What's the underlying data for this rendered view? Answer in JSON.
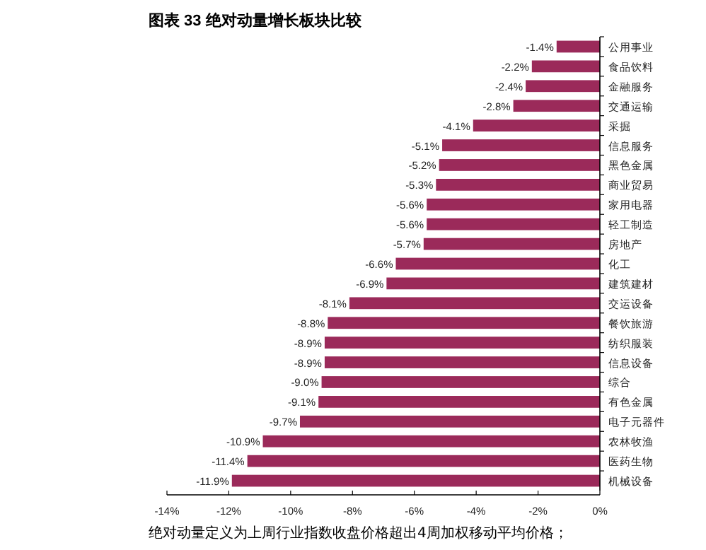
{
  "chart_data": {
    "type": "bar",
    "orientation": "horizontal",
    "title": "图表 33 绝对动量增长板块比较",
    "categories": [
      "公用事业",
      "食品饮料",
      "金融服务",
      "交通运输",
      "采掘",
      "信息服务",
      "黑色金属",
      "商业贸易",
      "家用电器",
      "轻工制造",
      "房地产",
      "化工",
      "建筑建材",
      "交运设备",
      "餐饮旅游",
      "纺织服装",
      "信息设备",
      "综合",
      "有色金属",
      "电子元器件",
      "农林牧渔",
      "医药生物",
      "机械设备"
    ],
    "values": [
      -1.4,
      -2.2,
      -2.4,
      -2.8,
      -4.1,
      -5.1,
      -5.2,
      -5.3,
      -5.6,
      -5.6,
      -5.7,
      -6.6,
      -6.9,
      -8.1,
      -8.8,
      -8.9,
      -8.9,
      -9.0,
      -9.1,
      -9.7,
      -10.9,
      -11.4,
      -11.9
    ],
    "value_labels": [
      "-1.4%",
      "-2.2%",
      "-2.4%",
      "-2.8%",
      "-4.1%",
      "-5.1%",
      "-5.2%",
      "-5.3%",
      "-5.6%",
      "-5.6%",
      "-5.7%",
      "-6.6%",
      "-6.9%",
      "-8.1%",
      "-8.8%",
      "-8.9%",
      "-8.9%",
      "-9.0%",
      "-9.1%",
      "-9.7%",
      "-10.9%",
      "-11.4%",
      "-11.9%"
    ],
    "color": "#9b2a5a",
    "xlim": [
      -14,
      0
    ],
    "xticks": [
      {
        "value": -14,
        "label": "-14%"
      },
      {
        "value": -12,
        "label": "-12%"
      },
      {
        "value": -10,
        "label": "-10%"
      },
      {
        "value": -8,
        "label": "-8%"
      },
      {
        "value": -6,
        "label": "-6%"
      },
      {
        "value": -4,
        "label": "-4%"
      },
      {
        "value": -2,
        "label": "-2%"
      },
      {
        "value": 0,
        "label": "0%"
      }
    ],
    "annotations": [
      "绝对动量定义为上周行业指数收盘价格超出4周加权移动平均价格；"
    ]
  }
}
